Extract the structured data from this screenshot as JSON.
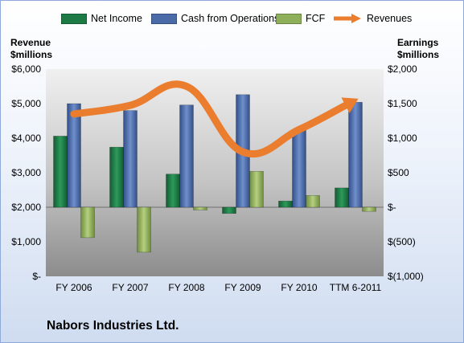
{
  "legend": {
    "net_income": "Net Income",
    "cfo": "Cash from Operations",
    "fcf": "FCF",
    "revenues": "Revenues"
  },
  "axes": {
    "left_title_line1": "Revenue",
    "left_title_line2": "$millions",
    "right_title_line1": "Earnings",
    "right_title_line2": "$millions"
  },
  "company_name": "Nabors Industries Ltd.",
  "colors": {
    "net_income": "#1e7a45",
    "cfo": "#4a6aa8",
    "fcf": "#8fb05a",
    "revenues": "#ea7d2e"
  },
  "chart_data": {
    "type": "bar",
    "categories": [
      "FY 2006",
      "FY 2007",
      "FY 2008",
      "FY 2009",
      "FY 2010",
      "TTM 6-2011"
    ],
    "left_axis": {
      "ylim": [
        0,
        6000
      ],
      "ticks": [
        0,
        1000,
        2000,
        3000,
        4000,
        5000,
        6000
      ],
      "tick_labels": [
        "$-",
        "$1,000",
        "$2,000",
        "$3,000",
        "$4,000",
        "$5,000",
        "$6,000"
      ]
    },
    "right_axis": {
      "ylim": [
        -1000,
        2000
      ],
      "ticks": [
        -1000,
        -500,
        0,
        500,
        1000,
        1500,
        2000
      ],
      "tick_labels": [
        "$(1,000)",
        "$(500)",
        "$-",
        "$500",
        "$1,000",
        "$1,500",
        "$2,000"
      ]
    },
    "series": [
      {
        "name": "Net Income",
        "type": "bar",
        "axis": "right",
        "values": [
          1030,
          870,
          480,
          -90,
          90,
          280
        ]
      },
      {
        "name": "Cash from Operations",
        "type": "bar",
        "axis": "right",
        "values": [
          1500,
          1400,
          1480,
          1630,
          1120,
          1520
        ]
      },
      {
        "name": "FCF",
        "type": "bar",
        "axis": "right",
        "values": [
          -440,
          -650,
          -40,
          520,
          170,
          -60
        ]
      },
      {
        "name": "Revenues",
        "type": "line",
        "axis": "left",
        "values": [
          4700,
          4950,
          5500,
          3600,
          4250,
          5100
        ]
      }
    ],
    "grid": false,
    "legend_position": "top"
  }
}
